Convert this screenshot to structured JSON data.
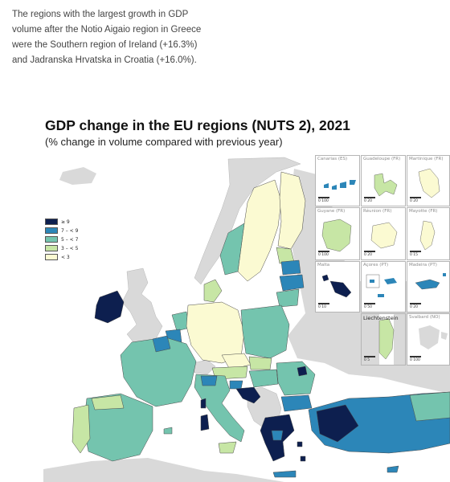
{
  "intro_text": "The regions with the largest growth in GDP volume after the Notio Aigaio region in Greece were the Southern region of Ireland (+16.3%) and Jadranska Hrvatska in Croatia (+16.0%).",
  "map": {
    "title": "GDP change in the EU regions (NUTS 2), 2021",
    "subtitle": "(% change in volume compared with previous year)",
    "legend": [
      {
        "label": "≥ 9",
        "color": "#0d1f4f"
      },
      {
        "label": "7 – < 9",
        "color": "#2c86b8"
      },
      {
        "label": "5 – < 7",
        "color": "#74c4ae"
      },
      {
        "label": "3 – < 5",
        "color": "#c7e6a5"
      },
      {
        "label": "< 3",
        "color": "#fbfad2"
      }
    ],
    "colors": {
      "non_eu": "#d9d9d9",
      "sea": "#ffffff",
      "border": "#4a4a4a"
    },
    "insets": [
      {
        "name": "Canarias (ES)",
        "scale": "0 100"
      },
      {
        "name": "Guadeloupe (FR)",
        "scale": "0 20"
      },
      {
        "name": "Martinique (FR)",
        "scale": "0 20"
      },
      {
        "name": "Guyane (FR)",
        "scale": "0 100"
      },
      {
        "name": "Réunion (FR)",
        "scale": "0 20"
      },
      {
        "name": "Mayotte (FR)",
        "scale": "0 15"
      },
      {
        "name": "Malta",
        "scale": "0 10"
      },
      {
        "name": "Açores (PT)",
        "scale": "0 50"
      },
      {
        "name": "Madeira (PT)",
        "scale": "0 20"
      },
      {
        "name": "Liechtenstein",
        "scale": "0 5"
      },
      {
        "name": "Svalbard (NO)",
        "scale": "0 100"
      }
    ]
  }
}
